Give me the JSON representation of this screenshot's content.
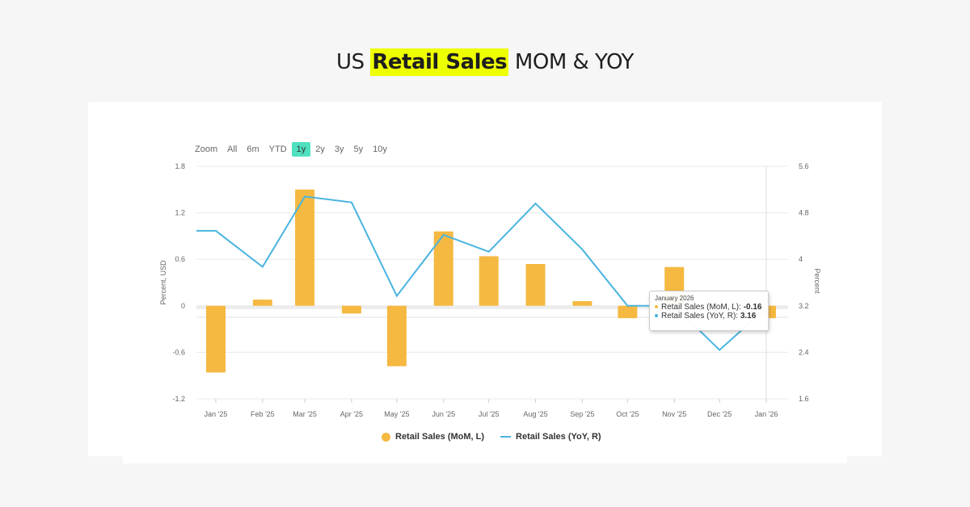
{
  "title": {
    "prefix": "US",
    "highlight": "Retail Sales",
    "suffix": "MOM & YOY",
    "highlight_color": "#eeff00"
  },
  "zoom": {
    "label": "Zoom",
    "options": [
      "All",
      "6m",
      "YTD",
      "1y",
      "2y",
      "3y",
      "5y",
      "10y"
    ],
    "active": "1y",
    "active_color": "#4fe0bf"
  },
  "tooltip": {
    "date": "January 2026",
    "rows": [
      {
        "label": "Retail Sales (MoM, L): ",
        "value": "-0.16",
        "color": "#f5b942"
      },
      {
        "label": "Retail Sales (YoY, R): ",
        "value": "3.16",
        "color": "#4ab4e0"
      }
    ]
  },
  "chart_data": {
    "type": "bar+line",
    "categories": [
      "Jan '25",
      "Feb '25",
      "Mar '25",
      "Apr '25",
      "May '25",
      "Jun '25",
      "Jul '25",
      "Aug '25",
      "Sep '25",
      "Oct '25",
      "Nov '25",
      "Dec '25",
      "Jan '26"
    ],
    "series": [
      {
        "name": "Retail Sales (MoM, L)",
        "type": "bar",
        "axis": "left",
        "color": "#f5b942",
        "values": [
          -0.86,
          0.08,
          1.5,
          -0.1,
          -0.78,
          0.96,
          0.64,
          0.54,
          0.06,
          -0.16,
          0.5,
          0.0,
          -0.16
        ]
      },
      {
        "name": "Retail Sales (YoY, R)",
        "type": "line",
        "axis": "right",
        "color": "#4ab4e0",
        "values": [
          4.49,
          3.87,
          5.08,
          4.98,
          3.37,
          4.42,
          4.13,
          4.96,
          4.17,
          3.2,
          3.2,
          2.44,
          3.16
        ]
      }
    ],
    "left_axis": {
      "label": "Percent, USD",
      "ticks": [
        "1.8",
        "1.2",
        "0.6",
        "0",
        "-0.6",
        "-1.2"
      ],
      "range": [
        -1.2,
        1.8
      ]
    },
    "right_axis": {
      "label": "Percent",
      "ticks": [
        "5.6",
        "4.8",
        "4",
        "3.2",
        "2.4",
        "1.6"
      ],
      "range": [
        1.6,
        5.6
      ]
    },
    "grid": true,
    "legend": "bottom-center"
  }
}
